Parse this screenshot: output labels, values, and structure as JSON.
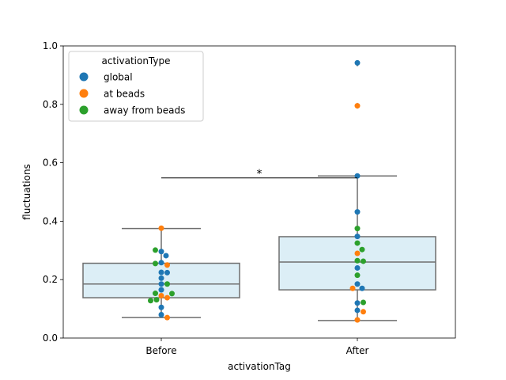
{
  "chart_data": {
    "type": "box",
    "title": "",
    "xlabel": "activationTag",
    "ylabel": "fluctuations",
    "ylim": [
      0,
      1.0
    ],
    "yticks": [
      0.0,
      0.2,
      0.4,
      0.6,
      0.8,
      1.0
    ],
    "ytick_labels": [
      "0.0",
      "0.2",
      "0.4",
      "0.6",
      "0.8",
      "1.0"
    ],
    "categories": [
      "Before",
      "After"
    ],
    "grid": false,
    "legend": {
      "title": "activationType",
      "placement": "top-left",
      "entries": [
        {
          "label": "global",
          "color": "#1f77b4"
        },
        {
          "label": "at beads",
          "color": "#ff7f0e"
        },
        {
          "label": "away from beads",
          "color": "#2ca02c"
        }
      ]
    },
    "box_style": {
      "fill": "#dceef6",
      "line": "#6e6e6e"
    },
    "boxes": [
      {
        "category": "Before",
        "whisker_low": 0.07,
        "q1": 0.138,
        "median": 0.185,
        "q3": 0.256,
        "whisker_high": 0.375,
        "outliers": []
      },
      {
        "category": "After",
        "whisker_low": 0.06,
        "q1": 0.165,
        "median": 0.26,
        "q3": 0.347,
        "whisker_high": 0.555,
        "outliers": [
          0.94,
          0.795
        ]
      }
    ],
    "points": [
      {
        "category": "Before",
        "type": "global",
        "y": 0.296
      },
      {
        "category": "Before",
        "type": "global",
        "y": 0.282
      },
      {
        "category": "Before",
        "type": "global",
        "y": 0.258
      },
      {
        "category": "Before",
        "type": "global",
        "y": 0.225
      },
      {
        "category": "Before",
        "type": "global",
        "y": 0.224
      },
      {
        "category": "Before",
        "type": "global",
        "y": 0.205
      },
      {
        "category": "Before",
        "type": "global",
        "y": 0.185
      },
      {
        "category": "Before",
        "type": "global",
        "y": 0.165
      },
      {
        "category": "Before",
        "type": "global",
        "y": 0.105
      },
      {
        "category": "Before",
        "type": "global",
        "y": 0.08
      },
      {
        "category": "Before",
        "type": "at beads",
        "y": 0.376
      },
      {
        "category": "Before",
        "type": "at beads",
        "y": 0.25
      },
      {
        "category": "Before",
        "type": "at beads",
        "y": 0.145
      },
      {
        "category": "Before",
        "type": "at beads",
        "y": 0.138
      },
      {
        "category": "Before",
        "type": "at beads",
        "y": 0.07
      },
      {
        "category": "Before",
        "type": "away from beads",
        "y": 0.301
      },
      {
        "category": "Before",
        "type": "away from beads",
        "y": 0.255
      },
      {
        "category": "Before",
        "type": "away from beads",
        "y": 0.185
      },
      {
        "category": "Before",
        "type": "away from beads",
        "y": 0.153
      },
      {
        "category": "Before",
        "type": "away from beads",
        "y": 0.152
      },
      {
        "category": "Before",
        "type": "away from beads",
        "y": 0.131
      },
      {
        "category": "Before",
        "type": "away from beads",
        "y": 0.128
      },
      {
        "category": "After",
        "type": "global",
        "y": 0.942
      },
      {
        "category": "After",
        "type": "global",
        "y": 0.555
      },
      {
        "category": "After",
        "type": "global",
        "y": 0.432
      },
      {
        "category": "After",
        "type": "global",
        "y": 0.348
      },
      {
        "category": "After",
        "type": "global",
        "y": 0.24
      },
      {
        "category": "After",
        "type": "global",
        "y": 0.185
      },
      {
        "category": "After",
        "type": "global",
        "y": 0.17
      },
      {
        "category": "After",
        "type": "global",
        "y": 0.12
      },
      {
        "category": "After",
        "type": "global",
        "y": 0.095
      },
      {
        "category": "After",
        "type": "at beads",
        "y": 0.795
      },
      {
        "category": "After",
        "type": "at beads",
        "y": 0.29
      },
      {
        "category": "After",
        "type": "at beads",
        "y": 0.17
      },
      {
        "category": "After",
        "type": "at beads",
        "y": 0.09
      },
      {
        "category": "After",
        "type": "at beads",
        "y": 0.062
      },
      {
        "category": "After",
        "type": "away from beads",
        "y": 0.375
      },
      {
        "category": "After",
        "type": "away from beads",
        "y": 0.325
      },
      {
        "category": "After",
        "type": "away from beads",
        "y": 0.303
      },
      {
        "category": "After",
        "type": "away from beads",
        "y": 0.265
      },
      {
        "category": "After",
        "type": "away from beads",
        "y": 0.263
      },
      {
        "category": "After",
        "type": "away from beads",
        "y": 0.215
      },
      {
        "category": "After",
        "type": "away from beads",
        "y": 0.122
      }
    ],
    "annotations": [
      {
        "text": "*",
        "from": "Before",
        "to": "After",
        "y": 0.548
      }
    ]
  }
}
